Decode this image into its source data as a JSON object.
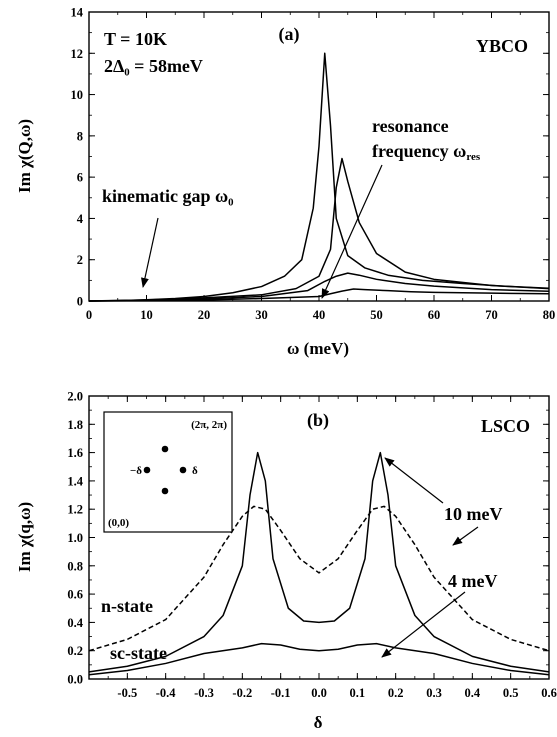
{
  "chart_data": [
    {
      "type": "line",
      "panel_label": "(a)",
      "xlabel": "ω (meV)",
      "ylabel": "Im χ(Q,ω)",
      "xlim": [
        0,
        80
      ],
      "ylim": [
        0,
        14
      ],
      "x_ticks": [
        "0",
        "10",
        "20",
        "30",
        "40",
        "50",
        "60",
        "70",
        "80"
      ],
      "y_ticks": [
        "0",
        "2",
        "4",
        "6",
        "8",
        "10",
        "12",
        "14"
      ],
      "annotations": {
        "params_line1": "T = 10K",
        "params_line2": "2Δ₀ = 58meV",
        "material": "YBCO",
        "kinematic_gap": "kinematic gap ω₀",
        "resonance_line1": "resonance",
        "resonance_line2": "frequency ω",
        "resonance_sub": "res"
      },
      "series": [
        {
          "x": [
            0,
            5,
            10,
            15,
            20,
            25,
            30,
            34,
            37,
            39,
            40,
            41,
            42,
            43,
            45,
            48,
            52,
            58,
            65,
            72,
            80
          ],
          "y": [
            0,
            0.02,
            0.06,
            0.12,
            0.22,
            0.4,
            0.7,
            1.2,
            2.0,
            4.5,
            7.5,
            12.0,
            8.5,
            4.0,
            2.2,
            1.6,
            1.25,
            1.0,
            0.85,
            0.72,
            0.62
          ]
        },
        {
          "x": [
            0,
            10,
            20,
            30,
            36,
            40,
            42,
            43,
            44,
            45,
            47,
            50,
            55,
            60,
            70,
            80
          ],
          "y": [
            0,
            0.05,
            0.15,
            0.3,
            0.6,
            1.2,
            2.5,
            5.5,
            6.9,
            5.8,
            3.8,
            2.3,
            1.4,
            1.05,
            0.75,
            0.6
          ]
        },
        {
          "x": [
            0,
            10,
            20,
            30,
            38,
            41,
            43,
            45,
            47,
            50,
            55,
            60,
            70,
            80
          ],
          "y": [
            0,
            0.03,
            0.1,
            0.22,
            0.5,
            0.95,
            1.2,
            1.35,
            1.25,
            1.05,
            0.85,
            0.72,
            0.55,
            0.47
          ]
        },
        {
          "x": [
            0,
            10,
            20,
            30,
            40,
            42,
            44,
            46,
            48,
            52,
            56,
            60,
            70,
            80
          ],
          "y": [
            0,
            0.02,
            0.05,
            0.12,
            0.22,
            0.35,
            0.48,
            0.58,
            0.55,
            0.5,
            0.45,
            0.42,
            0.38,
            0.35
          ]
        }
      ]
    },
    {
      "type": "line",
      "panel_label": "(b)",
      "xlabel": "δ",
      "ylabel": "Im χ(q,ω)",
      "xlim": [
        -0.6,
        0.6
      ],
      "ylim": [
        0,
        2.0
      ],
      "x_ticks": [
        "-0.5",
        "-0.4",
        "-0.3",
        "-0.2",
        "-0.1",
        "0.0",
        "0.1",
        "0.2",
        "0.3",
        "0.4",
        "0.5",
        "0.6"
      ],
      "y_ticks": [
        "0.0",
        "0.2",
        "0.4",
        "0.6",
        "0.8",
        "1.0",
        "1.2",
        "1.4",
        "1.6",
        "1.8",
        "2.0"
      ],
      "annotations": {
        "material": "LSCO",
        "energy_10": "10 meV",
        "energy_4": "4 meV",
        "n_state": "n-state",
        "sc_state": "sc-state",
        "inset_corner_top": "(2π, 2π)",
        "inset_corner_bottom": "(0,0)",
        "inset_left": "−δ",
        "inset_right": "δ"
      },
      "series": [
        {
          "style": "dashed",
          "x": [
            -0.6,
            -0.5,
            -0.4,
            -0.3,
            -0.25,
            -0.2,
            -0.17,
            -0.14,
            -0.1,
            -0.05,
            0.0,
            0.05,
            0.1,
            0.14,
            0.17,
            0.2,
            0.25,
            0.3,
            0.4,
            0.5,
            0.6
          ],
          "y": [
            0.2,
            0.28,
            0.42,
            0.72,
            0.95,
            1.15,
            1.22,
            1.2,
            1.05,
            0.85,
            0.75,
            0.85,
            1.05,
            1.2,
            1.22,
            1.15,
            0.95,
            0.72,
            0.42,
            0.28,
            0.2
          ]
        },
        {
          "style": "solid",
          "x": [
            -0.6,
            -0.5,
            -0.4,
            -0.3,
            -0.25,
            -0.2,
            -0.18,
            -0.16,
            -0.14,
            -0.12,
            -0.08,
            -0.04,
            0.0,
            0.04,
            0.08,
            0.12,
            0.14,
            0.16,
            0.18,
            0.2,
            0.25,
            0.3,
            0.4,
            0.5,
            0.6
          ],
          "y": [
            0.05,
            0.09,
            0.16,
            0.3,
            0.45,
            0.8,
            1.3,
            1.6,
            1.4,
            0.85,
            0.5,
            0.41,
            0.4,
            0.41,
            0.5,
            0.85,
            1.4,
            1.6,
            1.3,
            0.8,
            0.45,
            0.3,
            0.16,
            0.09,
            0.05
          ]
        },
        {
          "style": "solid",
          "x": [
            -0.6,
            -0.5,
            -0.4,
            -0.3,
            -0.2,
            -0.15,
            -0.1,
            -0.05,
            0.0,
            0.05,
            0.1,
            0.15,
            0.2,
            0.3,
            0.4,
            0.5,
            0.6
          ],
          "y": [
            0.03,
            0.06,
            0.11,
            0.18,
            0.22,
            0.25,
            0.24,
            0.21,
            0.2,
            0.21,
            0.24,
            0.25,
            0.22,
            0.18,
            0.11,
            0.06,
            0.03
          ]
        }
      ]
    }
  ]
}
